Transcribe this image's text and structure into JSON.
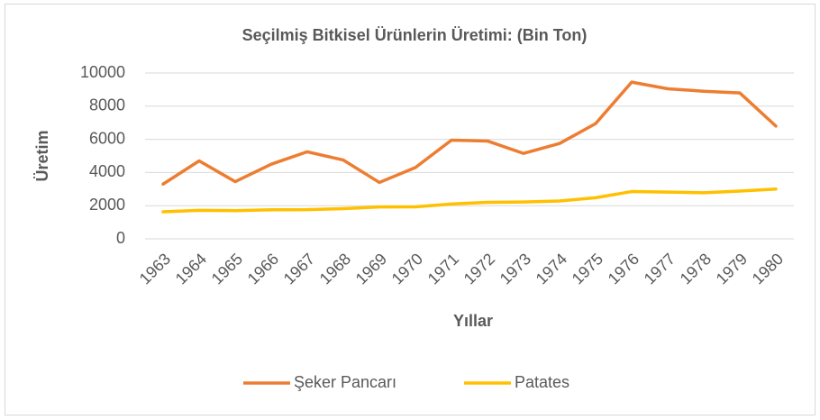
{
  "chart_data": {
    "type": "line",
    "title": "Seçilmiş Bitkisel Ürünlerin Üretimi: (Bin Ton)",
    "xlabel": "Yıllar",
    "ylabel": "Üretim",
    "categories": [
      "1963",
      "1964",
      "1965",
      "1966",
      "1967",
      "1968",
      "1969",
      "1970",
      "1971",
      "1972",
      "1973",
      "1974",
      "1975",
      "1976",
      "1977",
      "1978",
      "1979",
      "1980"
    ],
    "series": [
      {
        "name": "Şeker Pancarı",
        "color": "#ED7D31",
        "values": [
          3300,
          4700,
          3450,
          4500,
          5250,
          4750,
          3400,
          4300,
          5950,
          5900,
          5150,
          5750,
          6950,
          9450,
          9050,
          8900,
          8800,
          6800
        ]
      },
      {
        "name": "Patates",
        "color": "#FFC000",
        "values": [
          1630,
          1720,
          1700,
          1750,
          1760,
          1820,
          1920,
          1930,
          2100,
          2200,
          2220,
          2280,
          2480,
          2850,
          2820,
          2780,
          2880,
          3000
        ]
      }
    ],
    "ylim": [
      0,
      10000
    ],
    "yticks": [
      0,
      2000,
      4000,
      6000,
      8000,
      10000
    ],
    "grid": true,
    "legend": "bottom"
  }
}
